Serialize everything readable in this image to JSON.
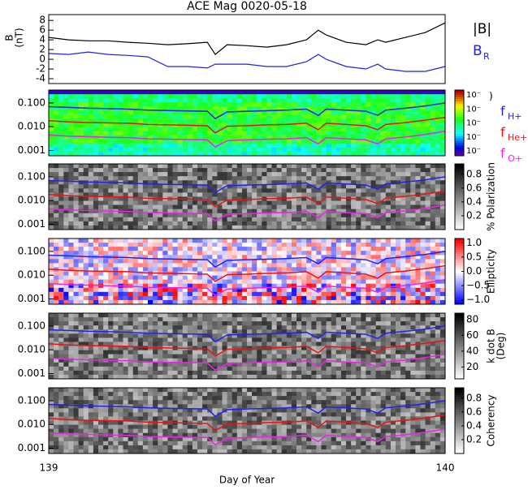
{
  "chart_data": [
    {
      "type": "line",
      "title": "ACE Mag 0020-05-18",
      "ylabel": "B",
      "yunit": "(nT)",
      "ylim": [
        -5,
        9.2
      ],
      "yticks": [
        -4,
        -2,
        0,
        2,
        4,
        6,
        8
      ],
      "x": [
        139.0,
        139.05,
        139.1,
        139.15,
        139.2,
        139.25,
        139.3,
        139.35,
        139.4,
        139.42,
        139.45,
        139.5,
        139.55,
        139.6,
        139.65,
        139.68,
        139.7,
        139.75,
        139.8,
        139.83,
        139.85,
        139.9,
        139.95,
        140.0
      ],
      "series": [
        {
          "name": "|B|",
          "color": "#000000",
          "values": [
            4.5,
            4,
            3.8,
            3.8,
            3.5,
            3.3,
            3.0,
            3.2,
            3.5,
            1,
            3,
            2.8,
            2.5,
            3,
            4,
            6,
            5,
            3.5,
            3,
            4,
            3.5,
            4.5,
            5.5,
            7.5
          ]
        },
        {
          "name": "B",
          "subscript": "R",
          "color": "#2222dd",
          "values": [
            1.2,
            1,
            1.5,
            1,
            0.8,
            0.5,
            -1.5,
            -1.5,
            -1.8,
            -1,
            -1,
            -1,
            -1.5,
            -1.5,
            -0.5,
            1,
            0,
            -1.5,
            -2,
            -1,
            -2,
            -2.5,
            -2.5,
            -1.5
          ]
        }
      ]
    },
    {
      "type": "spectrogram",
      "log": true,
      "ylim": [
        0.0006,
        0.35
      ],
      "yticks": [
        0.001,
        {
          "value": 0.01,
          "label": "0.010"
        },
        {
          "value": 0.1,
          "label": "0.100"
        }
      ],
      "cmap": "rainbow",
      "clabel": ")",
      "ctick_labels": [
        "10⁻",
        "10⁻",
        "10⁻",
        "10⁻",
        "10⁻"
      ],
      "x": [
        139.0,
        139.05,
        139.1,
        139.15,
        139.2,
        139.25,
        139.3,
        139.35,
        139.4,
        139.42,
        139.45,
        139.5,
        139.55,
        139.6,
        139.65,
        139.68,
        139.7,
        139.75,
        139.8,
        139.83,
        139.85,
        139.9,
        139.95,
        140.0
      ],
      "series": [
        {
          "name": "f",
          "subscript": "H+",
          "color": "#2222ee",
          "values": [
            0.07,
            0.065,
            0.06,
            0.058,
            0.055,
            0.05,
            0.048,
            0.046,
            0.045,
            0.022,
            0.042,
            0.045,
            0.047,
            0.05,
            0.055,
            0.03,
            0.055,
            0.05,
            0.045,
            0.03,
            0.05,
            0.06,
            0.075,
            0.1
          ]
        },
        {
          "name": "f",
          "subscript": "He+",
          "color": "#ee1111",
          "values": [
            0.018,
            0.016,
            0.015,
            0.0145,
            0.014,
            0.0125,
            0.012,
            0.0115,
            0.011,
            0.0055,
            0.0105,
            0.011,
            0.012,
            0.0125,
            0.014,
            0.0075,
            0.014,
            0.0125,
            0.011,
            0.0075,
            0.0125,
            0.015,
            0.019,
            0.025
          ]
        },
        {
          "name": "f",
          "subscript": "O+",
          "color": "#ee22ee",
          "values": [
            0.0045,
            0.004,
            0.0038,
            0.0036,
            0.0035,
            0.0031,
            0.003,
            0.0029,
            0.0028,
            0.0014,
            0.0026,
            0.0028,
            0.003,
            0.0031,
            0.0035,
            0.0019,
            0.0035,
            0.0031,
            0.0028,
            0.0019,
            0.0031,
            0.0037,
            0.0047,
            0.0065
          ]
        }
      ]
    },
    {
      "type": "spectrogram",
      "log": true,
      "ylim": [
        0.0006,
        0.35
      ],
      "yticks": [
        0.001,
        {
          "value": 0.01,
          "label": "0.010"
        },
        {
          "value": 0.1,
          "label": "0.100"
        }
      ],
      "cmap": "gray",
      "clabel": "% Polarization",
      "clim": [
        0,
        0.95
      ],
      "cticks": [
        0.2,
        0.4,
        0.6,
        0.8
      ]
    },
    {
      "type": "spectrogram",
      "log": true,
      "ylim": [
        0.0006,
        0.35
      ],
      "yticks": [
        0.001,
        {
          "value": 0.01,
          "label": "0.010"
        },
        {
          "value": 0.1,
          "label": "0.100"
        }
      ],
      "cmap": "bwr",
      "clabel": "Ellipticity",
      "clim": [
        -1.15,
        1.15
      ],
      "cticks": [
        {
          "value": -1,
          "label": "−1.0"
        },
        {
          "value": -0.5,
          "label": "−0.5"
        },
        {
          "value": 0,
          "label": "0.0"
        },
        {
          "value": 0.5,
          "label": "0.5"
        },
        {
          "value": 1,
          "label": "1.0"
        }
      ]
    },
    {
      "type": "spectrogram",
      "log": true,
      "ylim": [
        0.0006,
        0.35
      ],
      "yticks": [
        0.001,
        {
          "value": 0.01,
          "label": "0.010"
        },
        {
          "value": 0.1,
          "label": "0.100"
        }
      ],
      "cmap": "gray",
      "clabel": "k dot B",
      "cunit": "(Deg)",
      "clim": [
        5,
        88
      ],
      "cticks": [
        20,
        40,
        60,
        80
      ]
    },
    {
      "type": "spectrogram",
      "log": true,
      "ylim": [
        0.0006,
        0.35
      ],
      "yticks": [
        0.001,
        {
          "value": 0.01,
          "label": "0.010"
        },
        {
          "value": 0.1,
          "label": "0.100"
        }
      ],
      "cmap": "gray",
      "clabel": "Coherency",
      "clim": [
        0,
        0.95
      ],
      "cticks": [
        0.2,
        0.4,
        0.6,
        0.8
      ],
      "xlim": [
        139,
        140
      ],
      "xticks": [
        139,
        140
      ],
      "xlabel": "Day of Year"
    }
  ]
}
